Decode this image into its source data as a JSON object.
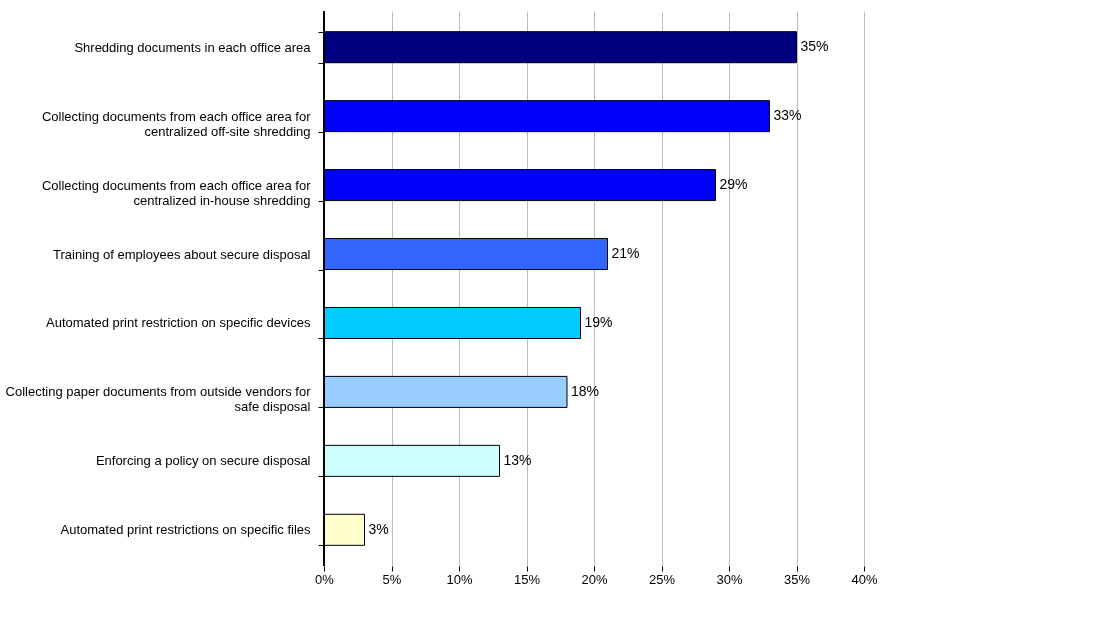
{
  "chart_data": {
    "type": "bar",
    "orientation": "horizontal",
    "categories": [
      "Shredding documents in each office area",
      "Collecting documents from each office area for centralized off-site shredding",
      "Collecting documents from each office area for centralized in-house shredding",
      "Training of employees about secure disposal",
      "Automated print restriction on specific devices",
      "Collecting paper documents from outside vendors for safe disposal",
      "Enforcing a policy on secure disposal",
      "Automated print restrictions on specific files"
    ],
    "values": [
      35,
      33,
      29,
      21,
      19,
      18,
      13,
      3
    ],
    "colors": [
      "#000080",
      "#0000ff",
      "#0000ff",
      "#3366ff",
      "#00ccff",
      "#99ccff",
      "#ccffff",
      "#ffffcc"
    ],
    "value_labels": [
      "35%",
      "33%",
      "29%",
      "21%",
      "19%",
      "18%",
      "13%",
      "3%"
    ],
    "xlim": [
      0,
      40
    ],
    "xticks": [
      {
        "value": 0,
        "label": "0%"
      },
      {
        "value": 5,
        "label": "5%"
      },
      {
        "value": 10,
        "label": "10%"
      },
      {
        "value": 15,
        "label": "15%"
      },
      {
        "value": 20,
        "label": "20%"
      },
      {
        "value": 25,
        "label": "25%"
      },
      {
        "value": 30,
        "label": "30%"
      },
      {
        "value": 35,
        "label": "35%"
      },
      {
        "value": 40,
        "label": "40%"
      }
    ],
    "grid": "x"
  }
}
